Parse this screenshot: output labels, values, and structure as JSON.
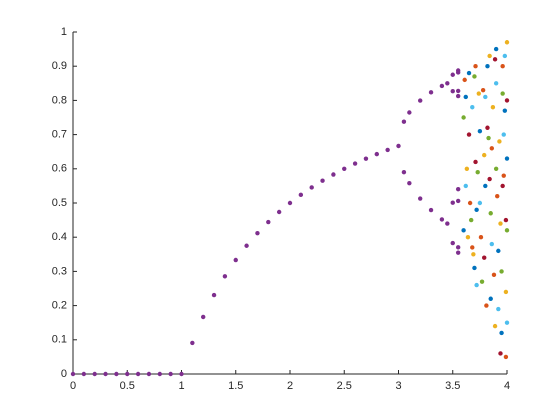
{
  "chart_data": {
    "type": "scatter",
    "xlim": [
      0,
      4
    ],
    "xticks": [
      0,
      0.5,
      1,
      1.5,
      2,
      2.5,
      3,
      3.5,
      4
    ],
    "ylim": [
      0,
      1
    ],
    "yticks": [
      0,
      0.1,
      0.2,
      0.3,
      0.4,
      0.5,
      0.6,
      0.7,
      0.8,
      0.9,
      1
    ],
    "grid": false,
    "series": [
      {
        "color": "#0072BD",
        "x": [
          3.6,
          3.65,
          3.7,
          3.75,
          3.8,
          3.85,
          3.9,
          3.95,
          4,
          3.62,
          3.72,
          3.82,
          3.92,
          3.98
        ],
        "values": [
          0.42,
          0.88,
          0.31,
          0.71,
          0.55,
          0.22,
          0.95,
          0.12,
          0.63,
          0.81,
          0.48,
          0.9,
          0.36,
          0.77
        ]
      },
      {
        "color": "#D95319",
        "x": [
          3.61,
          3.66,
          3.71,
          3.76,
          3.81,
          3.86,
          3.91,
          3.96,
          3.99,
          3.68,
          3.78,
          3.88,
          3.97
        ],
        "values": [
          0.86,
          0.5,
          0.9,
          0.4,
          0.2,
          0.66,
          0.52,
          0.9,
          0.05,
          0.37,
          0.83,
          0.29,
          0.58
        ]
      },
      {
        "color": "#EDB120",
        "x": [
          3.63,
          3.69,
          3.74,
          3.79,
          3.84,
          3.89,
          3.94,
          4,
          3.64,
          3.87,
          3.93,
          3.99
        ],
        "values": [
          0.6,
          0.35,
          0.82,
          0.64,
          0.93,
          0.14,
          0.44,
          0.97,
          0.4,
          0.78,
          0.68,
          0.24
        ]
      },
      {
        "color": "#77AC30",
        "x": [
          3.6,
          3.67,
          3.73,
          3.77,
          3.83,
          3.9,
          3.95,
          4,
          3.7,
          3.85,
          3.96
        ],
        "values": [
          0.75,
          0.45,
          0.59,
          0.27,
          0.69,
          0.6,
          0.3,
          0.42,
          0.87,
          0.47,
          0.82
        ]
      },
      {
        "color": "#4DBEEE",
        "x": [
          3.62,
          3.68,
          3.72,
          3.8,
          3.86,
          3.92,
          3.97,
          4,
          3.75,
          3.9,
          3.98
        ],
        "values": [
          0.55,
          0.78,
          0.26,
          0.81,
          0.38,
          0.19,
          0.7,
          0.15,
          0.5,
          0.85,
          0.93
        ]
      },
      {
        "color": "#A2142F",
        "x": [
          3.65,
          3.71,
          3.79,
          3.84,
          3.89,
          3.94,
          3.99,
          4,
          3.82,
          3.96
        ],
        "values": [
          0.7,
          0.62,
          0.34,
          0.57,
          0.92,
          0.06,
          0.45,
          0.8,
          0.72,
          0.55
        ]
      },
      {
        "color": "#7E2F8E",
        "x": [
          0,
          0.1,
          0.2,
          0.3,
          0.4,
          0.5,
          0.6,
          0.7,
          0.8,
          0.9,
          1,
          1.1,
          1.2,
          1.3,
          1.4,
          1.5,
          1.6,
          1.7,
          1.8,
          1.9,
          2,
          2.1,
          2.2,
          2.3,
          2.4,
          2.5,
          2.6,
          2.7,
          2.8,
          2.9,
          3,
          3.05,
          3.05,
          3.1,
          3.1,
          3.2,
          3.2,
          3.3,
          3.3,
          3.4,
          3.4,
          3.45,
          3.45,
          3.5,
          3.5,
          3.5,
          3.5,
          3.55,
          3.55,
          3.55,
          3.55,
          3.55,
          3.55,
          3.55,
          3.55
        ],
        "values": [
          0,
          0,
          0,
          0,
          0,
          0,
          0,
          0,
          0,
          0,
          0,
          0.0909,
          0.1667,
          0.2308,
          0.2857,
          0.3333,
          0.375,
          0.4118,
          0.4444,
          0.4737,
          0.5,
          0.5238,
          0.5455,
          0.5652,
          0.5833,
          0.6,
          0.6154,
          0.6296,
          0.6429,
          0.6552,
          0.6667,
          0.7377,
          0.5902,
          0.7646,
          0.558,
          0.7995,
          0.513,
          0.8236,
          0.4794,
          0.8422,
          0.452,
          0.85,
          0.4398,
          0.875,
          0.3828,
          0.8269,
          0.5009,
          0.8874,
          0.3548,
          0.8127,
          0.5405,
          0.8817,
          0.3703,
          0.8278,
          0.506
        ]
      }
    ]
  }
}
